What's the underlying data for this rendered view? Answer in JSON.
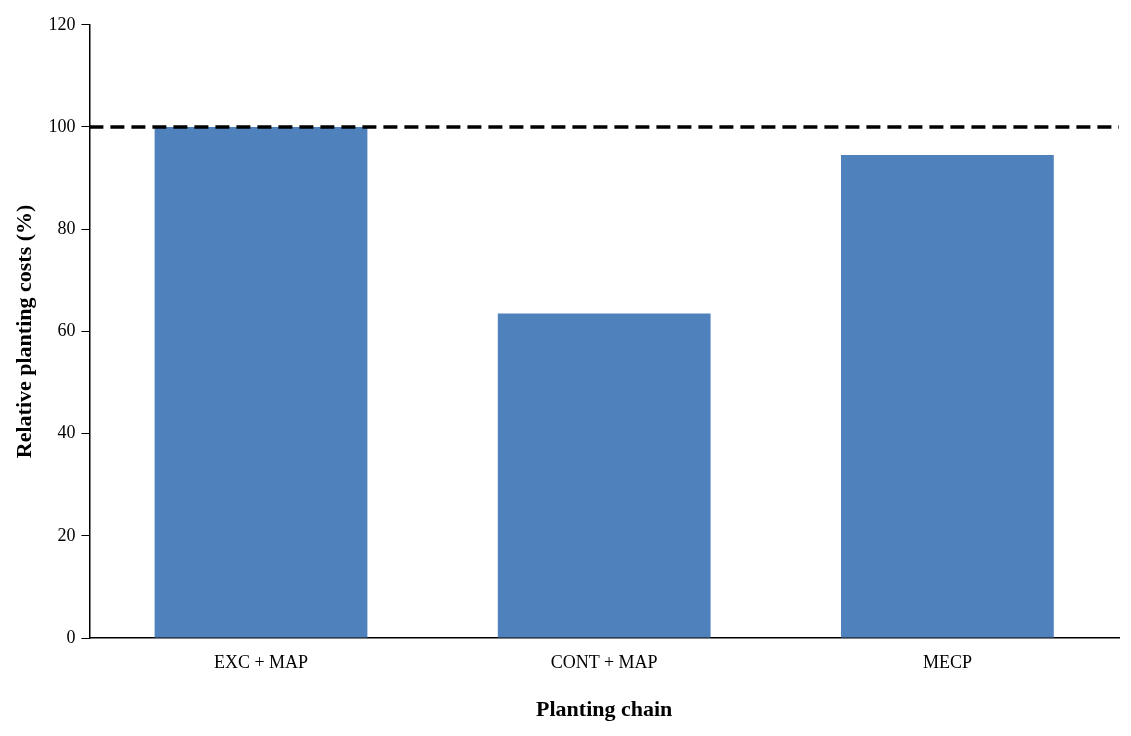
{
  "chart_data": {
    "type": "bar",
    "xlabel": "Planting chain",
    "ylabel": "Relative planting costs (%)",
    "categories": [
      "EXC + MAP",
      "CONT + MAP",
      "MECP"
    ],
    "values": [
      100,
      63.5,
      94.5
    ],
    "color": "#4f81bd",
    "ylim": [
      0,
      120
    ],
    "yticks": [
      0,
      20,
      40,
      60,
      80,
      100,
      120
    ],
    "grid": false,
    "legend": false,
    "ref_lines": [
      {
        "axis": "y",
        "value": 100,
        "color": "#000000",
        "line_style": "dashed"
      }
    ]
  }
}
